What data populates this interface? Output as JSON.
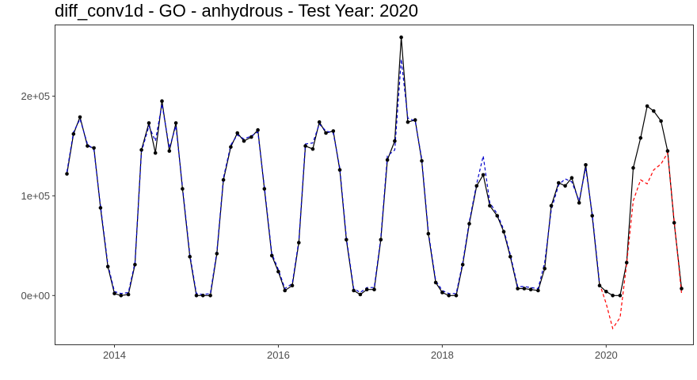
{
  "chart_data": {
    "type": "line",
    "title": "diff_conv1d - GO - anhydrous - Test Year: 2020",
    "xlabel": "",
    "ylabel": "",
    "xlim": [
      2013.28,
      2021.06
    ],
    "ylim": [
      -49000,
      271000
    ],
    "x_ticks": [
      {
        "value": 2014,
        "label": "2014"
      },
      {
        "value": 2016,
        "label": "2016"
      },
      {
        "value": 2018,
        "label": "2018"
      },
      {
        "value": 2020,
        "label": "2020"
      }
    ],
    "y_ticks": [
      {
        "value": 0,
        "label": "0e+00"
      },
      {
        "value": 100000,
        "label": "1e+05"
      },
      {
        "value": 200000,
        "label": "2e+05"
      }
    ],
    "grid": false,
    "legend": "none",
    "colors": {
      "actual": "#000000",
      "fitted": "#0000cc",
      "forecast": "#ff0000"
    },
    "series": [
      {
        "style": "solid-line-with-points",
        "color": "#000000",
        "x": [
          2013.42,
          2013.5,
          2013.58,
          2013.67,
          2013.75,
          2013.83,
          2013.92,
          2014.0,
          2014.08,
          2014.17,
          2014.25,
          2014.33,
          2014.42,
          2014.5,
          2014.58,
          2014.67,
          2014.75,
          2014.83,
          2014.92,
          2015.0,
          2015.08,
          2015.17,
          2015.25,
          2015.33,
          2015.42,
          2015.5,
          2015.58,
          2015.67,
          2015.75,
          2015.83,
          2015.92,
          2016.0,
          2016.08,
          2016.17,
          2016.25,
          2016.33,
          2016.42,
          2016.5,
          2016.58,
          2016.67,
          2016.75,
          2016.83,
          2016.92,
          2017.0,
          2017.08,
          2017.17,
          2017.25,
          2017.33,
          2017.42,
          2017.5,
          2017.58,
          2017.67,
          2017.75,
          2017.83,
          2017.92,
          2018.0,
          2018.08,
          2018.17,
          2018.25,
          2018.33,
          2018.42,
          2018.5,
          2018.58,
          2018.67,
          2018.75,
          2018.83,
          2018.92,
          2019.0,
          2019.08,
          2019.17,
          2019.25,
          2019.33,
          2019.42,
          2019.5,
          2019.58,
          2019.67,
          2019.75,
          2019.83,
          2019.92,
          2020.0,
          2020.08,
          2020.17,
          2020.25,
          2020.33,
          2020.42,
          2020.5,
          2020.58,
          2020.67,
          2020.75,
          2020.83,
          2020.92
        ],
        "values": [
          122000,
          162000,
          179000,
          150000,
          148000,
          88000,
          29000,
          2000,
          0,
          1000,
          31000,
          146000,
          173000,
          143000,
          195000,
          145000,
          173000,
          107000,
          39000,
          0,
          0,
          0,
          42000,
          116000,
          149000,
          163000,
          155000,
          159000,
          166000,
          107000,
          40000,
          24000,
          5000,
          10000,
          53000,
          150000,
          147000,
          174000,
          163000,
          165000,
          126000,
          56000,
          5000,
          1000,
          6000,
          6000,
          56000,
          136000,
          155000,
          259000,
          174000,
          176000,
          135000,
          62000,
          13000,
          3000,
          0,
          0,
          31000,
          72000,
          110000,
          121000,
          90000,
          80000,
          64000,
          39000,
          7000,
          7000,
          6000,
          5000,
          27000,
          90000,
          113000,
          110000,
          118000,
          93000,
          131000,
          80000,
          10000,
          4000,
          0,
          0,
          33000,
          128000,
          158000,
          190000,
          185000,
          175000,
          145000,
          73000,
          7000
        ]
      },
      {
        "style": "dashed-line",
        "color": "#0000cc",
        "x": [
          2013.42,
          2013.5,
          2013.58,
          2013.67,
          2013.75,
          2013.83,
          2013.92,
          2014.0,
          2014.08,
          2014.17,
          2014.25,
          2014.33,
          2014.42,
          2014.5,
          2014.58,
          2014.67,
          2014.75,
          2014.83,
          2014.92,
          2015.0,
          2015.08,
          2015.17,
          2015.25,
          2015.33,
          2015.42,
          2015.5,
          2015.58,
          2015.67,
          2015.75,
          2015.83,
          2015.92,
          2016.0,
          2016.08,
          2016.17,
          2016.25,
          2016.33,
          2016.42,
          2016.5,
          2016.58,
          2016.67,
          2016.75,
          2016.83,
          2016.92,
          2017.0,
          2017.08,
          2017.17,
          2017.25,
          2017.33,
          2017.42,
          2017.5,
          2017.58,
          2017.67,
          2017.75,
          2017.83,
          2017.92,
          2018.0,
          2018.08,
          2018.17,
          2018.25,
          2018.33,
          2018.42,
          2018.5,
          2018.58,
          2018.67,
          2018.75,
          2018.83,
          2018.92,
          2019.0,
          2019.08,
          2019.17,
          2019.25,
          2019.33,
          2019.42,
          2019.5,
          2019.58,
          2019.67,
          2019.75,
          2019.83,
          2019.92
        ],
        "values": [
          124000,
          164000,
          177000,
          152000,
          146000,
          90000,
          31000,
          4000,
          2000,
          3000,
          33000,
          144000,
          170000,
          155000,
          192000,
          148000,
          170000,
          109000,
          41000,
          2000,
          1000,
          2000,
          44000,
          118000,
          151000,
          161000,
          157000,
          160000,
          164000,
          109000,
          42000,
          26000,
          7000,
          12000,
          55000,
          152000,
          153000,
          172000,
          165000,
          163000,
          128000,
          58000,
          7000,
          3000,
          8000,
          8000,
          58000,
          140000,
          146000,
          237000,
          178000,
          175000,
          137000,
          64000,
          15000,
          5000,
          2000,
          2000,
          33000,
          74000,
          112000,
          140000,
          93000,
          82000,
          66000,
          41000,
          9000,
          9000,
          8000,
          7000,
          33000,
          86000,
          111000,
          117000,
          114000,
          95000,
          128000,
          82000,
          12000
        ]
      },
      {
        "style": "dashed-line",
        "color": "#ff0000",
        "x": [
          2019.92,
          2020.0,
          2020.08,
          2020.17,
          2020.25,
          2020.33,
          2020.42,
          2020.5,
          2020.58,
          2020.67,
          2020.75,
          2020.83,
          2020.92
        ],
        "values": [
          12000,
          -8000,
          -33000,
          -22000,
          32000,
          95000,
          116000,
          112000,
          126000,
          132000,
          143000,
          75000,
          2000
        ]
      }
    ]
  }
}
